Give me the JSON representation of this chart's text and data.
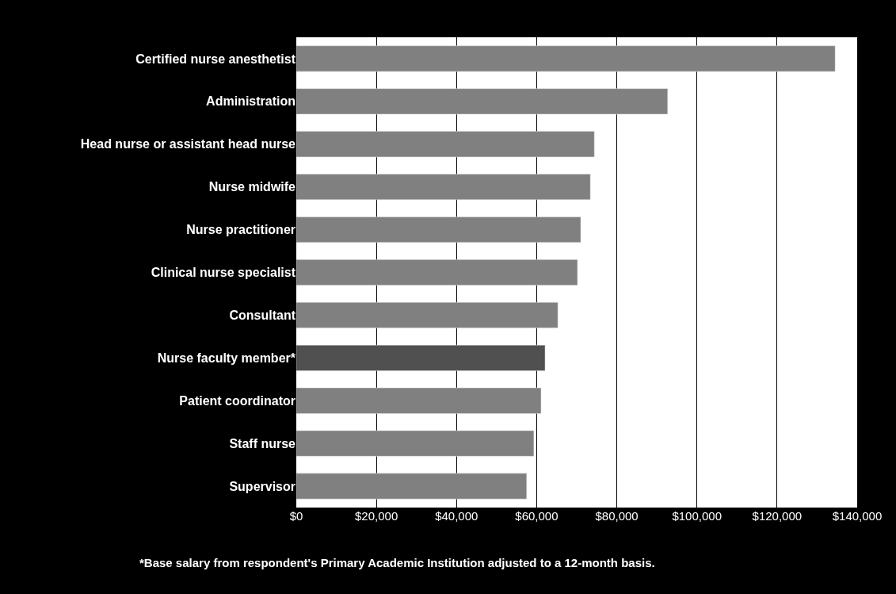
{
  "chart_data": {
    "type": "bar",
    "orientation": "horizontal",
    "categories": [
      "Certified nurse anesthetist",
      "Administration",
      "Head nurse or assistant head nurse",
      "Nurse midwife",
      "Nurse practitioner",
      "Clinical nurse specialist",
      "Consultant",
      "Nurse faculty member*",
      "Patient coordinator",
      "Staff nurse",
      "Supervisor"
    ],
    "values": [
      134500,
      92700,
      74400,
      73400,
      71000,
      70200,
      65300,
      62100,
      61100,
      59300,
      57500
    ],
    "colors": [
      "#808080",
      "#808080",
      "#808080",
      "#808080",
      "#808080",
      "#808080",
      "#808080",
      "#505050",
      "#808080",
      "#808080",
      "#808080"
    ],
    "xlim": [
      0,
      140000
    ],
    "xticks": [
      {
        "value": 0,
        "label": "$0"
      },
      {
        "value": 20000,
        "label": "$20,000"
      },
      {
        "value": 40000,
        "label": "$40,000"
      },
      {
        "value": 60000,
        "label": "$60,000"
      },
      {
        "value": 80000,
        "label": "$80,000"
      },
      {
        "value": 100000,
        "label": "$100,000"
      },
      {
        "value": 120000,
        "label": "$120,000"
      },
      {
        "value": 140000,
        "label": "$140,000"
      }
    ],
    "grid": "x",
    "annotations": [
      "*Base salary from respondent's Primary Academic Institution adjusted to a 12-month basis."
    ]
  }
}
